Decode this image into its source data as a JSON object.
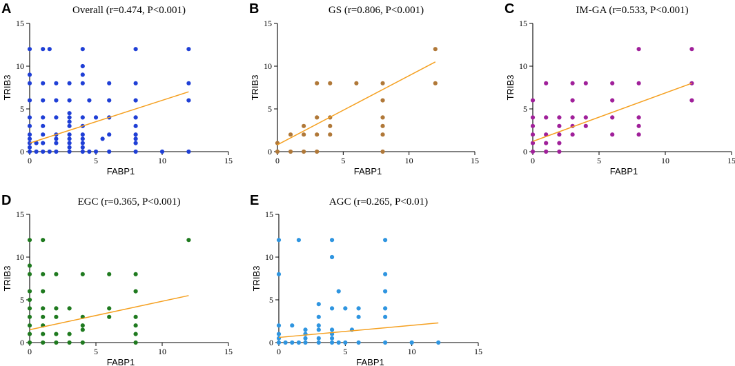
{
  "colors": {
    "fit_line": "#f5a020",
    "axis": "#000000"
  },
  "chart_data": [
    {
      "panel": "A",
      "type": "scatter",
      "title": "Overall (r=0.474, P<0.001)",
      "xlabel": "FABP1",
      "ylabel": "TRIB3",
      "xlim": [
        0,
        15
      ],
      "ylim": [
        0,
        15
      ],
      "xticks": [
        0,
        5,
        10,
        15
      ],
      "yticks": [
        0,
        5,
        10,
        15
      ],
      "point_color": "#1f3fd6",
      "fit": {
        "x": [
          0,
          12
        ],
        "y": [
          1.0,
          7.0
        ]
      },
      "points": [
        [
          0,
          0
        ],
        [
          0,
          0.5
        ],
        [
          0,
          1
        ],
        [
          0,
          1.5
        ],
        [
          0,
          2
        ],
        [
          0,
          3
        ],
        [
          0,
          4
        ],
        [
          0,
          6
        ],
        [
          0,
          8
        ],
        [
          0,
          9
        ],
        [
          0,
          12
        ],
        [
          0.5,
          0
        ],
        [
          0.5,
          1
        ],
        [
          1,
          0
        ],
        [
          1,
          1
        ],
        [
          1,
          2
        ],
        [
          1,
          3
        ],
        [
          1,
          4
        ],
        [
          1,
          6
        ],
        [
          1,
          8
        ],
        [
          1,
          12
        ],
        [
          1.5,
          0
        ],
        [
          1.5,
          12
        ],
        [
          2,
          0
        ],
        [
          2,
          1
        ],
        [
          2,
          1.5
        ],
        [
          2,
          2
        ],
        [
          2,
          4
        ],
        [
          2,
          6
        ],
        [
          2,
          8
        ],
        [
          3,
          0
        ],
        [
          3,
          0.5
        ],
        [
          3,
          1
        ],
        [
          3,
          1.5
        ],
        [
          3,
          2
        ],
        [
          3,
          3
        ],
        [
          3,
          3.5
        ],
        [
          3,
          4
        ],
        [
          3,
          4.5
        ],
        [
          3,
          6
        ],
        [
          3,
          8
        ],
        [
          4,
          0
        ],
        [
          4,
          0.5
        ],
        [
          4,
          1
        ],
        [
          4,
          1.5
        ],
        [
          4,
          2
        ],
        [
          4,
          3
        ],
        [
          4,
          4
        ],
        [
          4,
          8
        ],
        [
          4,
          9
        ],
        [
          4,
          10
        ],
        [
          4,
          12
        ],
        [
          4.5,
          0
        ],
        [
          4.5,
          6
        ],
        [
          5,
          0
        ],
        [
          5,
          4
        ],
        [
          5.5,
          1.5
        ],
        [
          6,
          0
        ],
        [
          6,
          2
        ],
        [
          6,
          4
        ],
        [
          6,
          6
        ],
        [
          6,
          8
        ],
        [
          8,
          0
        ],
        [
          8,
          1
        ],
        [
          8,
          1.5
        ],
        [
          8,
          2
        ],
        [
          8,
          3
        ],
        [
          8,
          4
        ],
        [
          8,
          6
        ],
        [
          8,
          8
        ],
        [
          8,
          12
        ],
        [
          10,
          0
        ],
        [
          12,
          0
        ],
        [
          12,
          6
        ],
        [
          12,
          8
        ],
        [
          12,
          12
        ]
      ]
    },
    {
      "panel": "B",
      "type": "scatter",
      "title": "GS (r=0.806, P<0.001)",
      "xlabel": "FABP1",
      "ylabel": "TRIB3",
      "xlim": [
        0,
        15
      ],
      "ylim": [
        0,
        15
      ],
      "xticks": [
        0,
        5,
        10,
        15
      ],
      "yticks": [
        0,
        5,
        10,
        15
      ],
      "point_color": "#b07838",
      "fit": {
        "x": [
          0,
          12
        ],
        "y": [
          0.8,
          10.5
        ]
      },
      "points": [
        [
          0,
          0
        ],
        [
          0,
          1
        ],
        [
          1,
          0
        ],
        [
          1,
          2
        ],
        [
          2,
          0
        ],
        [
          2,
          2
        ],
        [
          2,
          3
        ],
        [
          3,
          0
        ],
        [
          3,
          2
        ],
        [
          3,
          4
        ],
        [
          3,
          8
        ],
        [
          4,
          2
        ],
        [
          4,
          3
        ],
        [
          4,
          4
        ],
        [
          4,
          8
        ],
        [
          6,
          8
        ],
        [
          8,
          0
        ],
        [
          8,
          2
        ],
        [
          8,
          3
        ],
        [
          8,
          4
        ],
        [
          8,
          6
        ],
        [
          8,
          8
        ],
        [
          12,
          8
        ],
        [
          12,
          12
        ]
      ]
    },
    {
      "panel": "C",
      "type": "scatter",
      "title": "IM-GA (r=0.533, P<0.001)",
      "xlabel": "FABP1",
      "ylabel": "TRIB3",
      "xlim": [
        0,
        15
      ],
      "ylim": [
        0,
        15
      ],
      "xticks": [
        0,
        5,
        10,
        15
      ],
      "yticks": [
        0,
        5,
        10,
        15
      ],
      "point_color": "#a0209a",
      "fit": {
        "x": [
          0,
          12
        ],
        "y": [
          1.2,
          8.0
        ]
      },
      "points": [
        [
          0,
          0
        ],
        [
          0,
          1
        ],
        [
          0,
          2
        ],
        [
          0,
          3
        ],
        [
          0,
          4
        ],
        [
          0,
          6
        ],
        [
          1,
          0
        ],
        [
          1,
          1
        ],
        [
          1,
          2
        ],
        [
          1,
          4
        ],
        [
          1,
          8
        ],
        [
          2,
          0
        ],
        [
          2,
          1
        ],
        [
          2,
          2
        ],
        [
          2,
          3
        ],
        [
          2,
          4
        ],
        [
          3,
          2
        ],
        [
          3,
          3
        ],
        [
          3,
          4
        ],
        [
          3,
          6
        ],
        [
          3,
          8
        ],
        [
          4,
          3
        ],
        [
          4,
          4
        ],
        [
          4,
          8
        ],
        [
          6,
          2
        ],
        [
          6,
          4
        ],
        [
          6,
          6
        ],
        [
          6,
          8
        ],
        [
          8,
          2
        ],
        [
          8,
          3
        ],
        [
          8,
          4
        ],
        [
          8,
          8
        ],
        [
          8,
          12
        ],
        [
          12,
          6
        ],
        [
          12,
          8
        ],
        [
          12,
          12
        ]
      ]
    },
    {
      "panel": "D",
      "type": "scatter",
      "title": "EGC (r=0.365, P<0.001)",
      "xlabel": "FABP1",
      "ylabel": "TRIB3",
      "xlim": [
        0,
        15
      ],
      "ylim": [
        0,
        15
      ],
      "xticks": [
        0,
        5,
        10,
        15
      ],
      "yticks": [
        0,
        5,
        10,
        15
      ],
      "point_color": "#1f7a1f",
      "fit": {
        "x": [
          0,
          12
        ],
        "y": [
          1.5,
          5.5
        ]
      },
      "points": [
        [
          0,
          0
        ],
        [
          0,
          1
        ],
        [
          0,
          2
        ],
        [
          0,
          3
        ],
        [
          0,
          4
        ],
        [
          0,
          5
        ],
        [
          0,
          6
        ],
        [
          0,
          8
        ],
        [
          0,
          9
        ],
        [
          0,
          12
        ],
        [
          1,
          0
        ],
        [
          1,
          1
        ],
        [
          1,
          2
        ],
        [
          1,
          3
        ],
        [
          1,
          4
        ],
        [
          1,
          6
        ],
        [
          1,
          8
        ],
        [
          1,
          12
        ],
        [
          2,
          0
        ],
        [
          2,
          1
        ],
        [
          2,
          3
        ],
        [
          2,
          4
        ],
        [
          2,
          8
        ],
        [
          3,
          0
        ],
        [
          3,
          1
        ],
        [
          3,
          4
        ],
        [
          4,
          0
        ],
        [
          4,
          1.5
        ],
        [
          4,
          2
        ],
        [
          4,
          3
        ],
        [
          4,
          8
        ],
        [
          6,
          3
        ],
        [
          6,
          4
        ],
        [
          6,
          8
        ],
        [
          8,
          0
        ],
        [
          8,
          1
        ],
        [
          8,
          2
        ],
        [
          8,
          3
        ],
        [
          8,
          6
        ],
        [
          8,
          8
        ],
        [
          12,
          12
        ]
      ]
    },
    {
      "panel": "E",
      "type": "scatter",
      "title": "AGC (r=0.265, P<0.01)",
      "xlabel": "FABP1",
      "ylabel": "TRIB3",
      "xlim": [
        0,
        15
      ],
      "ylim": [
        0,
        15
      ],
      "xticks": [
        0,
        5,
        10,
        15
      ],
      "yticks": [
        0,
        5,
        10,
        15
      ],
      "point_color": "#2f95e0",
      "fit": {
        "x": [
          0,
          12
        ],
        "y": [
          0.6,
          2.3
        ]
      },
      "points": [
        [
          0,
          0
        ],
        [
          0,
          0.5
        ],
        [
          0,
          1
        ],
        [
          0,
          2
        ],
        [
          0,
          8
        ],
        [
          0,
          12
        ],
        [
          0.5,
          0
        ],
        [
          1,
          0
        ],
        [
          1,
          2
        ],
        [
          1.5,
          0
        ],
        [
          1.5,
          12
        ],
        [
          2,
          0
        ],
        [
          2,
          1
        ],
        [
          2,
          1.5
        ],
        [
          2,
          0.5
        ],
        [
          3,
          0
        ],
        [
          3,
          0.5
        ],
        [
          3,
          1.5
        ],
        [
          3,
          2
        ],
        [
          3,
          3
        ],
        [
          3,
          4.5
        ],
        [
          4,
          0
        ],
        [
          4,
          0.5
        ],
        [
          4,
          1
        ],
        [
          4,
          1.5
        ],
        [
          4,
          4
        ],
        [
          4,
          10
        ],
        [
          4,
          12
        ],
        [
          4.5,
          0
        ],
        [
          4.5,
          6
        ],
        [
          5,
          0
        ],
        [
          5,
          4
        ],
        [
          5.5,
          1.5
        ],
        [
          6,
          0
        ],
        [
          6,
          3
        ],
        [
          6,
          4
        ],
        [
          8,
          0
        ],
        [
          8,
          3
        ],
        [
          8,
          4
        ],
        [
          8,
          6
        ],
        [
          8,
          8
        ],
        [
          8,
          12
        ],
        [
          10,
          0
        ],
        [
          12,
          0
        ]
      ]
    }
  ]
}
